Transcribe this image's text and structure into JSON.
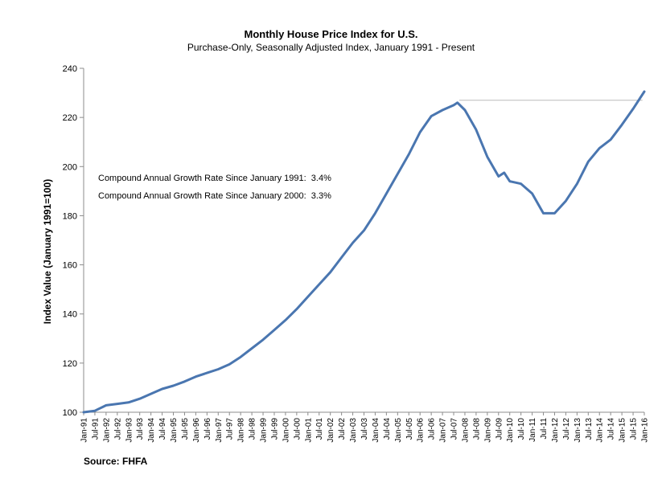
{
  "chart_data": {
    "type": "line",
    "title": "Monthly House Price Index for U.S.",
    "subtitle": "Purchase-Only, Seasonally Adjusted Index, January 1991 - Present",
    "ylabel": "Index Value (January 1991=100)",
    "xlabel": "",
    "ylim": [
      100,
      240
    ],
    "yticks": [
      100,
      120,
      140,
      160,
      180,
      200,
      220,
      240
    ],
    "grid": false,
    "x_start": "Jan-91",
    "x_end": "Jan-16",
    "x_tick_labels": [
      "Jan-91",
      "Jul-91",
      "Jan-92",
      "Jul-92",
      "Jan-93",
      "Jul-93",
      "Jan-94",
      "Jul-94",
      "Jan-95",
      "Jul-95",
      "Jan-96",
      "Jul-96",
      "Jan-97",
      "Jul-97",
      "Jan-98",
      "Jul-98",
      "Jan-99",
      "Jul-99",
      "Jan-00",
      "Jul-00",
      "Jan-01",
      "Jul-01",
      "Jan-02",
      "Jul-02",
      "Jan-03",
      "Jul-03",
      "Jan-04",
      "Jul-04",
      "Jan-05",
      "Jul-05",
      "Jan-06",
      "Jul-06",
      "Jan-07",
      "Jul-07",
      "Jan-08",
      "Jul-08",
      "Jan-09",
      "Jul-09",
      "Jan-10",
      "Jul-10",
      "Jan-11",
      "Jul-11",
      "Jan-12",
      "Jul-12",
      "Jan-13",
      "Jul-13",
      "Jan-14",
      "Jul-14",
      "Jan-15",
      "Jul-15",
      "Jan-16"
    ],
    "series": [
      {
        "color": "#4a76b0",
        "points": [
          [
            "Jan-91",
            100.0
          ],
          [
            "Jul-91",
            100.6
          ],
          [
            "Jan-92",
            102.8
          ],
          [
            "Jul-92",
            103.4
          ],
          [
            "Jan-93",
            104.0
          ],
          [
            "Jul-93",
            105.5
          ],
          [
            "Jan-94",
            107.5
          ],
          [
            "Jul-94",
            109.5
          ],
          [
            "Jan-95",
            110.8
          ],
          [
            "Jul-95",
            112.5
          ],
          [
            "Jan-96",
            114.5
          ],
          [
            "Jul-96",
            116.0
          ],
          [
            "Jan-97",
            117.5
          ],
          [
            "Jul-97",
            119.5
          ],
          [
            "Jan-98",
            122.5
          ],
          [
            "Jul-98",
            126.0
          ],
          [
            "Jan-99",
            129.5
          ],
          [
            "Jul-99",
            133.5
          ],
          [
            "Jan-00",
            137.5
          ],
          [
            "Jul-00",
            142.0
          ],
          [
            "Jan-01",
            147.0
          ],
          [
            "Jul-01",
            152.0
          ],
          [
            "Jan-02",
            157.0
          ],
          [
            "Jul-02",
            163.0
          ],
          [
            "Jan-03",
            169.0
          ],
          [
            "Jul-03",
            174.0
          ],
          [
            "Jan-04",
            181.0
          ],
          [
            "Jul-04",
            189.0
          ],
          [
            "Jan-05",
            197.0
          ],
          [
            "Jul-05",
            205.0
          ],
          [
            "Jan-06",
            214.0
          ],
          [
            "Jul-06",
            220.5
          ],
          [
            "Jan-07",
            223.0
          ],
          [
            "Jul-07",
            225.0
          ],
          [
            "Sep-07",
            226.0
          ],
          [
            "Jan-08",
            223.0
          ],
          [
            "Jul-08",
            215.0
          ],
          [
            "Jan-09",
            204.0
          ],
          [
            "Jul-09",
            196.0
          ],
          [
            "Oct-09",
            197.5
          ],
          [
            "Jan-10",
            194.0
          ],
          [
            "Jul-10",
            193.0
          ],
          [
            "Jan-11",
            189.0
          ],
          [
            "Jul-11",
            181.0
          ],
          [
            "Jan-12",
            181.0
          ],
          [
            "Jul-12",
            186.0
          ],
          [
            "Jan-13",
            193.0
          ],
          [
            "Jul-13",
            202.0
          ],
          [
            "Jan-14",
            207.5
          ],
          [
            "Jul-14",
            211.0
          ],
          [
            "Jan-15",
            217.0
          ],
          [
            "Jul-15",
            223.5
          ],
          [
            "Jan-16",
            230.5
          ]
        ]
      }
    ],
    "reference_line": {
      "value": 227,
      "from": "Oct-07",
      "to": "Dec-15",
      "color": "#bbbbbb"
    },
    "annotations": [
      "Compound Annual Growth Rate Since January 1991:  3.4%",
      "Compound Annual Growth Rate Since January 2000:  3.3%"
    ],
    "source": "Source: FHFA"
  }
}
